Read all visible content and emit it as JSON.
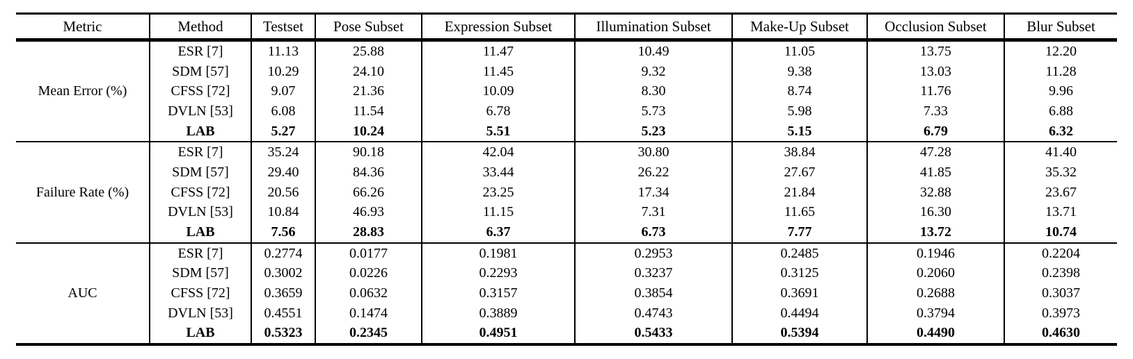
{
  "table": {
    "columns": [
      "Metric",
      "Method",
      "Testset",
      "Pose Subset",
      "Expression Subset",
      "Illumination Subset",
      "Make-Up Subset",
      "Occlusion Subset",
      "Blur Subset"
    ],
    "groups": [
      {
        "metric": "Mean Error (%)",
        "rows": [
          {
            "method": "ESR [7]",
            "bold": false,
            "values": [
              "11.13",
              "25.88",
              "11.47",
              "10.49",
              "11.05",
              "13.75",
              "12.20"
            ]
          },
          {
            "method": "SDM [57]",
            "bold": false,
            "values": [
              "10.29",
              "24.10",
              "11.45",
              "9.32",
              "9.38",
              "13.03",
              "11.28"
            ]
          },
          {
            "method": "CFSS [72]",
            "bold": false,
            "values": [
              "9.07",
              "21.36",
              "10.09",
              "8.30",
              "8.74",
              "11.76",
              "9.96"
            ]
          },
          {
            "method": "DVLN [53]",
            "bold": false,
            "values": [
              "6.08",
              "11.54",
              "6.78",
              "5.73",
              "5.98",
              "7.33",
              "6.88"
            ]
          },
          {
            "method": "LAB",
            "bold": true,
            "values": [
              "5.27",
              "10.24",
              "5.51",
              "5.23",
              "5.15",
              "6.79",
              "6.32"
            ]
          }
        ]
      },
      {
        "metric": "Failure Rate (%)",
        "rows": [
          {
            "method": "ESR [7]",
            "bold": false,
            "values": [
              "35.24",
              "90.18",
              "42.04",
              "30.80",
              "38.84",
              "47.28",
              "41.40"
            ]
          },
          {
            "method": "SDM [57]",
            "bold": false,
            "values": [
              "29.40",
              "84.36",
              "33.44",
              "26.22",
              "27.67",
              "41.85",
              "35.32"
            ]
          },
          {
            "method": "CFSS [72]",
            "bold": false,
            "values": [
              "20.56",
              "66.26",
              "23.25",
              "17.34",
              "21.84",
              "32.88",
              "23.67"
            ]
          },
          {
            "method": "DVLN [53]",
            "bold": false,
            "values": [
              "10.84",
              "46.93",
              "11.15",
              "7.31",
              "11.65",
              "16.30",
              "13.71"
            ]
          },
          {
            "method": "LAB",
            "bold": true,
            "values": [
              "7.56",
              "28.83",
              "6.37",
              "6.73",
              "7.77",
              "13.72",
              "10.74"
            ]
          }
        ]
      },
      {
        "metric": "AUC",
        "rows": [
          {
            "method": "ESR [7]",
            "bold": false,
            "values": [
              "0.2774",
              "0.0177",
              "0.1981",
              "0.2953",
              "0.2485",
              "0.1946",
              "0.2204"
            ]
          },
          {
            "method": "SDM [57]",
            "bold": false,
            "values": [
              "0.3002",
              "0.0226",
              "0.2293",
              "0.3237",
              "0.3125",
              "0.2060",
              "0.2398"
            ]
          },
          {
            "method": "CFSS [72]",
            "bold": false,
            "values": [
              "0.3659",
              "0.0632",
              "0.3157",
              "0.3854",
              "0.3691",
              "0.2688",
              "0.3037"
            ]
          },
          {
            "method": "DVLN [53]",
            "bold": false,
            "values": [
              "0.4551",
              "0.1474",
              "0.3889",
              "0.4743",
              "0.4494",
              "0.3794",
              "0.3973"
            ]
          },
          {
            "method": "LAB",
            "bold": true,
            "values": [
              "0.5323",
              "0.2345",
              "0.4951",
              "0.5433",
              "0.5394",
              "0.4490",
              "0.4630"
            ]
          }
        ]
      }
    ],
    "colors": {
      "text": "#000000",
      "background": "#ffffff",
      "rule": "#000000"
    }
  }
}
